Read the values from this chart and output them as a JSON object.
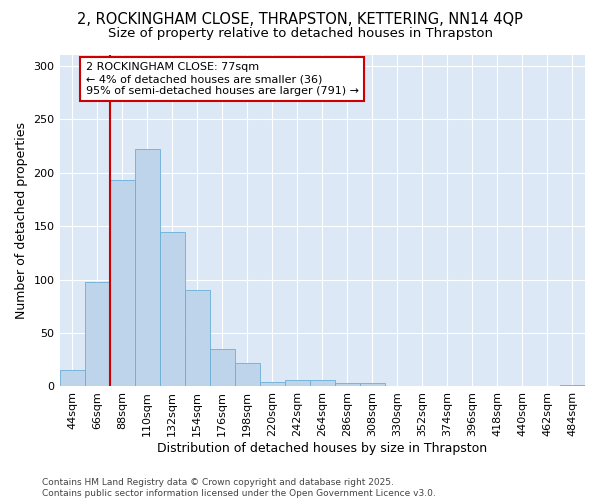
{
  "title_line1": "2, ROCKINGHAM CLOSE, THRAPSTON, KETTERING, NN14 4QP",
  "title_line2": "Size of property relative to detached houses in Thrapston",
  "xlabel": "Distribution of detached houses by size in Thrapston",
  "ylabel": "Number of detached properties",
  "categories": [
    "44sqm",
    "66sqm",
    "88sqm",
    "110sqm",
    "132sqm",
    "154sqm",
    "176sqm",
    "198sqm",
    "220sqm",
    "242sqm",
    "264sqm",
    "286sqm",
    "308sqm",
    "330sqm",
    "352sqm",
    "374sqm",
    "396sqm",
    "418sqm",
    "440sqm",
    "462sqm",
    "484sqm"
  ],
  "values": [
    15,
    98,
    193,
    222,
    144,
    90,
    35,
    22,
    4,
    6,
    6,
    3,
    3,
    0,
    0,
    0,
    0,
    0,
    0,
    0,
    1
  ],
  "bar_color": "#bdd4ea",
  "bar_edge_color": "#6baed6",
  "vline_x": 1.5,
  "vline_color": "#cc0000",
  "annotation_text": "2 ROCKINGHAM CLOSE: 77sqm\n← 4% of detached houses are smaller (36)\n95% of semi-detached houses are larger (791) →",
  "annotation_box_color": "#ffffff",
  "annotation_box_edge": "#cc0000",
  "ylim": [
    0,
    310
  ],
  "yticks": [
    0,
    50,
    100,
    150,
    200,
    250,
    300
  ],
  "background_color": "#dce8f5",
  "grid_color": "#ffffff",
  "fig_background": "#ffffff",
  "title_fontsize": 10.5,
  "subtitle_fontsize": 9.5,
  "axis_label_fontsize": 9,
  "tick_fontsize": 8,
  "annotation_fontsize": 8,
  "footer_fontsize": 6.5,
  "footer_text": "Contains HM Land Registry data © Crown copyright and database right 2025.\nContains public sector information licensed under the Open Government Licence v3.0."
}
